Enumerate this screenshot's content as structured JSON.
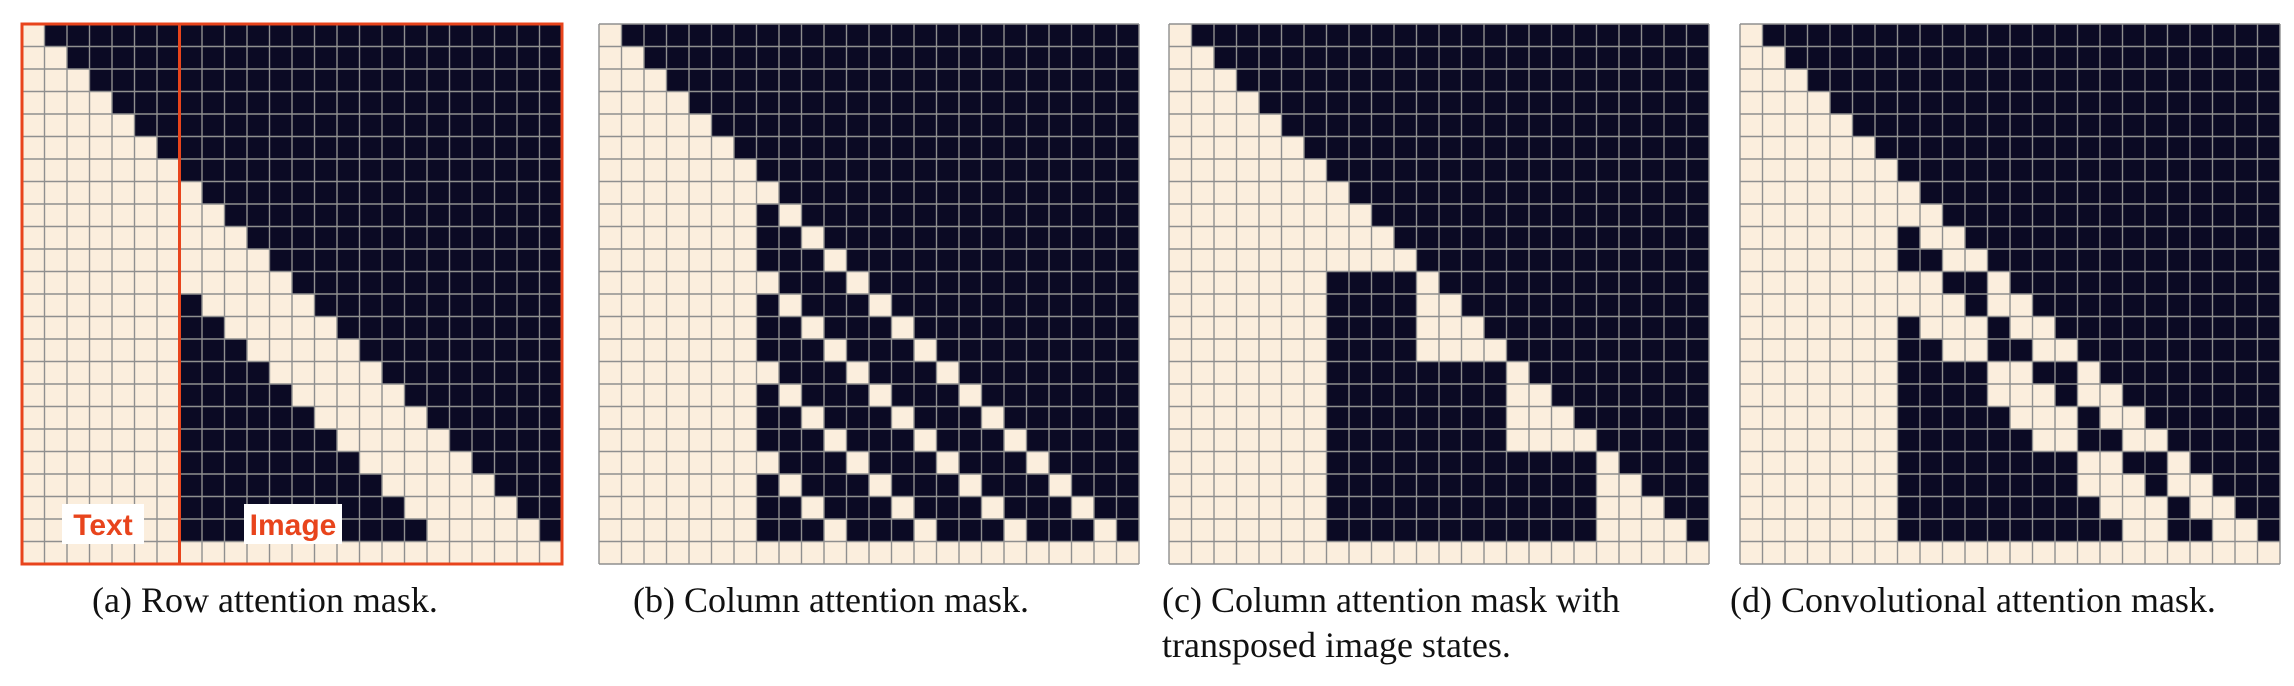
{
  "grid_size": 24,
  "text_tokens": 7,
  "image_side": 4,
  "colors": {
    "masked": "#0b0a24",
    "visible": "#fbeedd",
    "gridline": "#8f8f8f",
    "highlight": "#e8441c"
  },
  "highlight_labels": {
    "text": "Text",
    "image": "Image"
  },
  "panels": [
    {
      "id": "row",
      "caption": [
        "(a) Row attention mask."
      ]
    },
    {
      "id": "column",
      "caption": [
        "(b) Column attention mask."
      ]
    },
    {
      "id": "column-transposed",
      "caption": [
        "(c) Column attention mask with",
        "transposed image states."
      ]
    },
    {
      "id": "convolutional",
      "caption": [
        "(d) Convolutional attention mask."
      ]
    }
  ]
}
